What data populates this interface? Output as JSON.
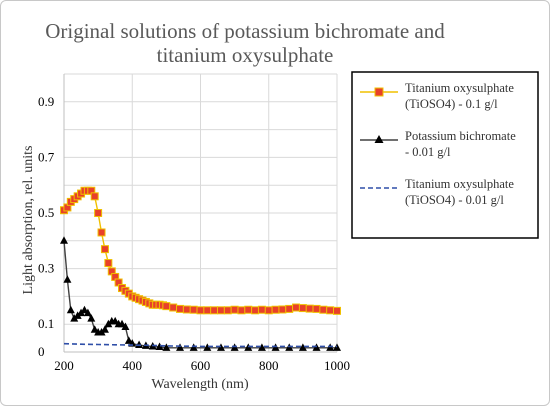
{
  "chart_data": {
    "type": "line",
    "title": "Original solutions of potassium bichromate and titanium oxysulphate",
    "title_lines": [
      "Original solutions of potassium bichromate and",
      "titanium oxysulphate"
    ],
    "xlabel": "Wavelength (nm)",
    "ylabel": "Light absorption, rel. units",
    "xlim": [
      200,
      1000
    ],
    "ylim": [
      0,
      1.0
    ],
    "x_ticks": [
      200,
      400,
      600,
      800,
      1000
    ],
    "y_ticks": [
      0,
      0.1,
      0.3,
      0.5,
      0.7,
      0.9
    ],
    "y_tick_labels": [
      "0",
      "0.1",
      "0.3",
      "0.5",
      "0.7",
      "0.9"
    ],
    "grid": true,
    "legend_position": "right",
    "series": [
      {
        "name": "Titanium oxysulphate (TiOSO4) - 0.1 g/l",
        "legend_lines": [
          "Titanium oxysulphate",
          "(TiOSO4) - 0.1 g/l"
        ],
        "color": "#f0c000",
        "marker": "square",
        "marker_color": "#e8402a",
        "x": [
          200,
          210,
          220,
          230,
          240,
          250,
          260,
          270,
          280,
          290,
          300,
          310,
          320,
          330,
          340,
          350,
          360,
          370,
          380,
          390,
          400,
          410,
          420,
          430,
          440,
          450,
          460,
          470,
          480,
          490,
          500,
          520,
          540,
          560,
          580,
          600,
          620,
          640,
          660,
          680,
          700,
          720,
          740,
          760,
          780,
          800,
          820,
          840,
          860,
          880,
          900,
          920,
          940,
          960,
          980,
          1000
        ],
        "y": [
          0.51,
          0.52,
          0.54,
          0.55,
          0.56,
          0.57,
          0.58,
          0.58,
          0.58,
          0.56,
          0.5,
          0.43,
          0.37,
          0.32,
          0.29,
          0.27,
          0.25,
          0.23,
          0.22,
          0.21,
          0.2,
          0.195,
          0.19,
          0.185,
          0.18,
          0.175,
          0.17,
          0.17,
          0.17,
          0.168,
          0.165,
          0.16,
          0.155,
          0.153,
          0.152,
          0.15,
          0.15,
          0.15,
          0.15,
          0.15,
          0.152,
          0.15,
          0.152,
          0.15,
          0.152,
          0.15,
          0.152,
          0.153,
          0.155,
          0.16,
          0.158,
          0.156,
          0.155,
          0.152,
          0.15,
          0.148
        ]
      },
      {
        "name": "Potassium bichromate - 0.01 g/l",
        "legend_lines": [
          "Potassium bichromate",
          "- 0.01 g/l"
        ],
        "color": "#404040",
        "marker": "triangle",
        "marker_color": "#000000",
        "x": [
          200,
          210,
          220,
          230,
          240,
          250,
          260,
          270,
          280,
          290,
          300,
          310,
          320,
          330,
          340,
          350,
          360,
          370,
          380,
          390,
          400,
          420,
          440,
          460,
          480,
          500,
          540,
          580,
          620,
          660,
          700,
          740,
          780,
          820,
          860,
          900,
          940,
          980,
          1000
        ],
        "y": [
          0.4,
          0.26,
          0.15,
          0.12,
          0.13,
          0.14,
          0.15,
          0.14,
          0.12,
          0.08,
          0.07,
          0.07,
          0.08,
          0.1,
          0.11,
          0.11,
          0.1,
          0.1,
          0.09,
          0.04,
          0.03,
          0.025,
          0.022,
          0.02,
          0.018,
          0.015,
          0.015,
          0.015,
          0.015,
          0.015,
          0.015,
          0.015,
          0.015,
          0.015,
          0.015,
          0.015,
          0.015,
          0.015,
          0.015
        ]
      },
      {
        "name": "Titanium oxysulphate (TiOSO4) - 0.01 g/l",
        "legend_lines": [
          "Titanium oxysulphate",
          "(TiOSO4) - 0.01 g/l"
        ],
        "color": "#2f4fa8",
        "dash": true,
        "x": [
          200,
          250,
          300,
          350,
          400,
          450,
          500,
          600,
          700,
          800,
          900,
          1000
        ],
        "y": [
          0.03,
          0.028,
          0.027,
          0.026,
          0.025,
          0.024,
          0.022,
          0.02,
          0.02,
          0.02,
          0.02,
          0.02
        ]
      }
    ]
  }
}
